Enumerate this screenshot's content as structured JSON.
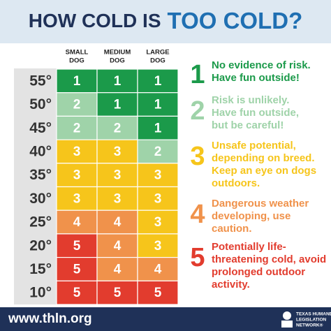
{
  "header": {
    "title_start": "HOW COLD IS",
    "title_emphasis": "TOO COLD?"
  },
  "table": {
    "columns": [
      [
        "SMALL",
        "DOG"
      ],
      [
        "MEDIUM",
        "DOG"
      ],
      [
        "LARGE",
        "DOG"
      ]
    ],
    "rows": [
      {
        "temp": "55°",
        "cells": [
          "1",
          "1",
          "1"
        ]
      },
      {
        "temp": "50°",
        "cells": [
          "2",
          "1",
          "1"
        ]
      },
      {
        "temp": "45°",
        "cells": [
          "2",
          "2",
          "1"
        ]
      },
      {
        "temp": "40°",
        "cells": [
          "3",
          "3",
          "2"
        ]
      },
      {
        "temp": "35°",
        "cells": [
          "3",
          "3",
          "3"
        ]
      },
      {
        "temp": "30°",
        "cells": [
          "3",
          "3",
          "3"
        ]
      },
      {
        "temp": "25°",
        "cells": [
          "4",
          "4",
          "3"
        ]
      },
      {
        "temp": "20°",
        "cells": [
          "5",
          "4",
          "3"
        ]
      },
      {
        "temp": "15°",
        "cells": [
          "5",
          "4",
          "4"
        ]
      },
      {
        "temp": "10°",
        "cells": [
          "5",
          "5",
          "5"
        ]
      }
    ]
  },
  "levels": [
    {
      "number": "1",
      "color": "#1b9a4a",
      "lines": [
        "No evidence of risk.",
        "Have fun outside!"
      ]
    },
    {
      "number": "2",
      "color": "#9fd3a9",
      "lines": [
        "Risk is unlikely.",
        "Have fun outside,",
        "but be careful!"
      ]
    },
    {
      "number": "3",
      "color": "#f6c51b",
      "lines": [
        "Unsafe potential,",
        "depending on breed.",
        "Keep an eye on dogs",
        "outdoors."
      ]
    },
    {
      "number": "4",
      "color": "#f0924b",
      "lines": [
        "Dangerous weather",
        "developing, use",
        "caution."
      ]
    },
    {
      "number": "5",
      "color": "#e23c2e",
      "lines": [
        "Potentially life-",
        "threatening cold, avoid",
        "prolonged outdoor",
        "activity."
      ]
    }
  ],
  "footer": {
    "url": "www.thln.org",
    "org": [
      "TEXAS HUMANE",
      "LEGISLATION",
      "NETWORK®"
    ]
  }
}
